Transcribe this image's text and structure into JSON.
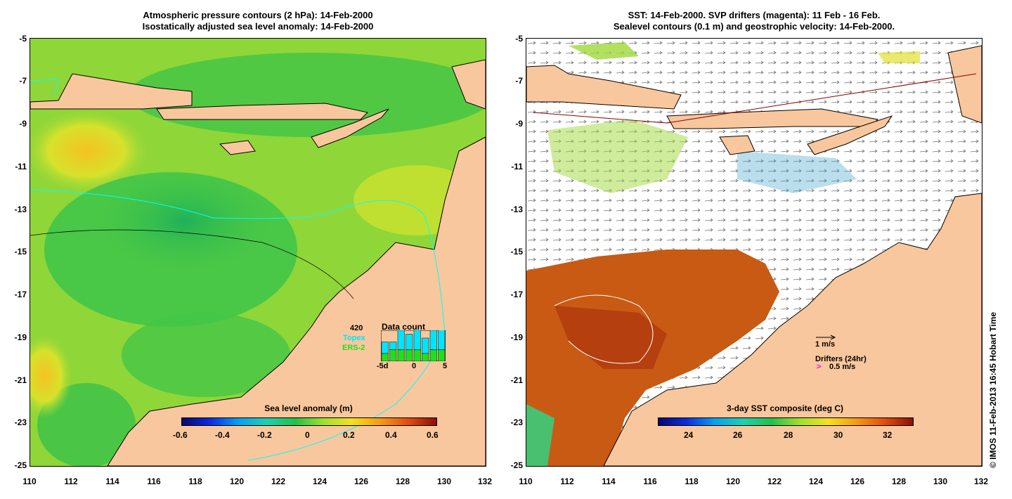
{
  "left_panel": {
    "title_line1": "Atmospheric pressure contours (2 hPa): 14-Feb-2000",
    "title_line2": "Isostatically adjusted sea level anomaly: 14-Feb-2000",
    "colorbar_title": "Sea level anomaly (m)",
    "colorbar_ticks": [
      "-0.6",
      "-0.4",
      "-0.2",
      "0",
      "0.2",
      "0.4",
      "0.6"
    ],
    "inset": {
      "title": "Data count",
      "count": "420",
      "series1": "Topex",
      "series2": "ERS-2",
      "x_ticks": [
        "-5d",
        "0",
        "5"
      ],
      "topex_values": [
        3,
        2,
        5,
        4,
        5,
        4,
        5,
        6
      ],
      "ers_values": [
        2,
        3,
        3,
        3,
        3,
        2,
        3,
        3
      ]
    }
  },
  "right_panel": {
    "title_line1": "SST: 14-Feb-2000. SVP drifters (magenta): 11 Feb - 16 Feb.",
    "title_line2": "Sealevel contours (0.1 m) and geostrophic velocity: 14-Feb-2000.",
    "colorbar_title": "3-day SST composite (deg C)",
    "colorbar_ticks": [
      "24",
      "26",
      "28",
      "30",
      "32"
    ],
    "velocity_scale": "1 m/s",
    "drifter_label": "Drifters (24hr)",
    "drifter_scale": "0.5 m/s"
  },
  "axes": {
    "y_ticks": [
      "-5",
      "-7",
      "-9",
      "-11",
      "-13",
      "-15",
      "-17",
      "-19",
      "-21",
      "-23",
      "-25"
    ],
    "x_ticks": [
      "110",
      "112",
      "114",
      "116",
      "118",
      "120",
      "122",
      "124",
      "126",
      "128",
      "130",
      "132"
    ]
  },
  "credit": "© IMOS 11-Feb-2013 16:45 Hobart Time",
  "colors": {
    "land": "#f9c79d",
    "sea_green": "#36c34b",
    "sea_yellow": "#d5e22a",
    "sst_hot": "#c4420e",
    "contour": "#00ffff"
  }
}
